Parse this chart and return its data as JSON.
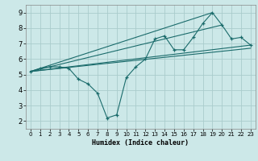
{
  "xlabel": "Humidex (Indice chaleur)",
  "bg_color": "#cce8e8",
  "grid_color": "#aacccc",
  "line_color": "#1a6b6b",
  "xlim": [
    -0.5,
    23.5
  ],
  "ylim": [
    1.5,
    9.5
  ],
  "xticks": [
    0,
    1,
    2,
    3,
    4,
    5,
    6,
    7,
    8,
    9,
    10,
    11,
    12,
    13,
    14,
    15,
    16,
    17,
    18,
    19,
    20,
    21,
    22,
    23
  ],
  "yticks": [
    2,
    3,
    4,
    5,
    6,
    7,
    8,
    9
  ],
  "series": [
    [
      0,
      5.2
    ],
    [
      1,
      5.4
    ],
    [
      2,
      5.5
    ],
    [
      3,
      5.5
    ],
    [
      4,
      5.4
    ],
    [
      5,
      4.7
    ],
    [
      6,
      4.4
    ],
    [
      7,
      3.8
    ],
    [
      8,
      2.2
    ],
    [
      9,
      2.4
    ],
    [
      10,
      4.8
    ],
    [
      11,
      5.5
    ],
    [
      12,
      6.0
    ],
    [
      13,
      7.3
    ],
    [
      14,
      7.5
    ],
    [
      15,
      6.6
    ],
    [
      16,
      6.6
    ],
    [
      17,
      7.4
    ],
    [
      18,
      8.3
    ],
    [
      19,
      9.0
    ],
    [
      20,
      8.2
    ],
    [
      21,
      7.3
    ],
    [
      22,
      7.4
    ],
    [
      23,
      6.9
    ]
  ],
  "straight_lines": [
    [
      [
        0,
        5.2
      ],
      [
        19,
        9.0
      ]
    ],
    [
      [
        0,
        5.2
      ],
      [
        20,
        8.2
      ]
    ],
    [
      [
        0,
        5.2
      ],
      [
        23,
        6.9
      ]
    ],
    [
      [
        0,
        5.2
      ],
      [
        23,
        6.7
      ]
    ]
  ]
}
